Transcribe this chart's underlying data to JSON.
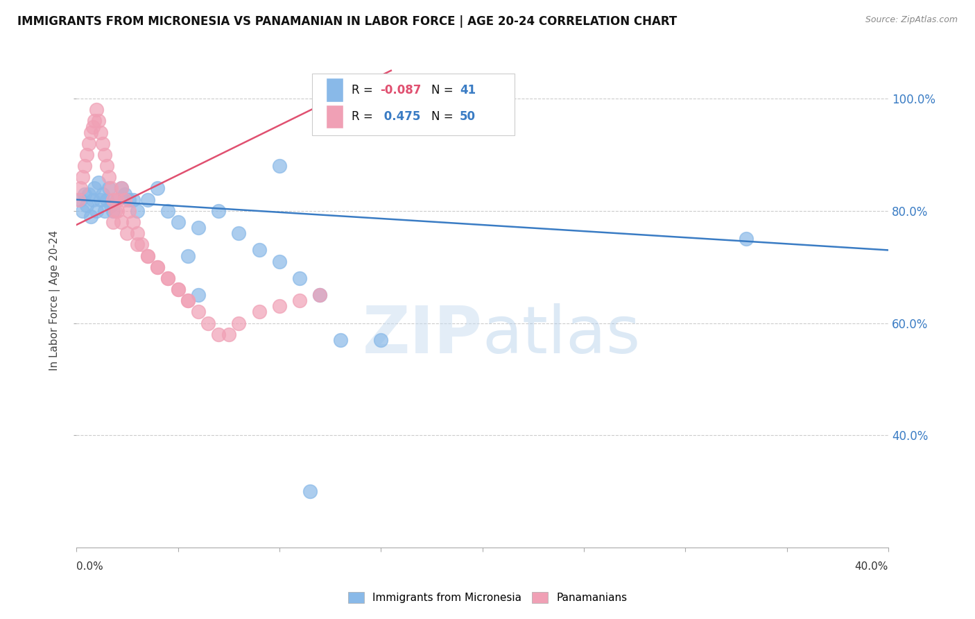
{
  "title": "IMMIGRANTS FROM MICRONESIA VS PANAMANIAN IN LABOR FORCE | AGE 20-24 CORRELATION CHART",
  "source": "Source: ZipAtlas.com",
  "ylabel": "In Labor Force | Age 20-24",
  "ytick_vals": [
    0.4,
    0.6,
    0.8,
    1.0
  ],
  "ytick_labels": [
    "40.0%",
    "60.0%",
    "80.0%",
    "100.0%"
  ],
  "xlim": [
    0.0,
    0.4
  ],
  "ylim": [
    0.2,
    1.08
  ],
  "legend_blue_label": "Immigrants from Micronesia",
  "legend_pink_label": "Panamanians",
  "R_blue": -0.087,
  "N_blue": 41,
  "R_pink": 0.475,
  "N_pink": 50,
  "blue_color": "#89B9E8",
  "pink_color": "#F0A0B5",
  "blue_line_color": "#3A7CC4",
  "pink_line_color": "#E05070",
  "watermark_zip": "ZIP",
  "watermark_atlas": "atlas",
  "blue_scatter_x": [
    0.002,
    0.003,
    0.004,
    0.005,
    0.006,
    0.007,
    0.008,
    0.009,
    0.01,
    0.011,
    0.012,
    0.013,
    0.014,
    0.015,
    0.016,
    0.017,
    0.018,
    0.02,
    0.022,
    0.024,
    0.026,
    0.028,
    0.03,
    0.035,
    0.04,
    0.045,
    0.05,
    0.055,
    0.06,
    0.07,
    0.08,
    0.09,
    0.1,
    0.11,
    0.12,
    0.13,
    0.15,
    0.33,
    0.1,
    0.06,
    0.115
  ],
  "blue_scatter_y": [
    0.82,
    0.8,
    0.83,
    0.81,
    0.83,
    0.79,
    0.82,
    0.84,
    0.8,
    0.85,
    0.82,
    0.83,
    0.8,
    0.82,
    0.84,
    0.81,
    0.8,
    0.82,
    0.84,
    0.83,
    0.82,
    0.82,
    0.8,
    0.82,
    0.84,
    0.8,
    0.78,
    0.72,
    0.77,
    0.8,
    0.76,
    0.73,
    0.71,
    0.68,
    0.65,
    0.57,
    0.57,
    0.75,
    0.88,
    0.65,
    0.3
  ],
  "pink_scatter_x": [
    0.001,
    0.002,
    0.003,
    0.004,
    0.005,
    0.006,
    0.007,
    0.008,
    0.009,
    0.01,
    0.011,
    0.012,
    0.013,
    0.014,
    0.015,
    0.016,
    0.017,
    0.018,
    0.019,
    0.02,
    0.022,
    0.024,
    0.026,
    0.028,
    0.03,
    0.032,
    0.035,
    0.04,
    0.045,
    0.05,
    0.055,
    0.06,
    0.065,
    0.07,
    0.075,
    0.08,
    0.09,
    0.1,
    0.11,
    0.12,
    0.018,
    0.02,
    0.022,
    0.025,
    0.03,
    0.035,
    0.04,
    0.045,
    0.05,
    0.055
  ],
  "pink_scatter_y": [
    0.82,
    0.84,
    0.86,
    0.88,
    0.9,
    0.92,
    0.94,
    0.95,
    0.96,
    0.98,
    0.96,
    0.94,
    0.92,
    0.9,
    0.88,
    0.86,
    0.84,
    0.82,
    0.8,
    0.82,
    0.84,
    0.82,
    0.8,
    0.78,
    0.76,
    0.74,
    0.72,
    0.7,
    0.68,
    0.66,
    0.64,
    0.62,
    0.6,
    0.58,
    0.58,
    0.6,
    0.62,
    0.63,
    0.64,
    0.65,
    0.78,
    0.8,
    0.78,
    0.76,
    0.74,
    0.72,
    0.7,
    0.68,
    0.66,
    0.64
  ],
  "blue_trend_x": [
    0.0,
    0.4
  ],
  "blue_trend_y": [
    0.82,
    0.73
  ],
  "pink_trend_x": [
    0.0,
    0.155
  ],
  "pink_trend_y": [
    0.775,
    1.05
  ]
}
